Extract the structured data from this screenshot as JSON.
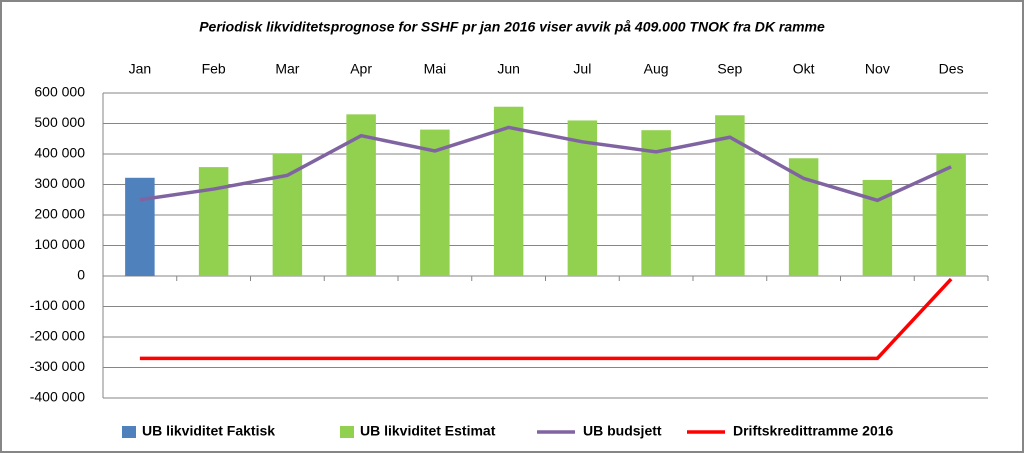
{
  "chart_data": {
    "type": "bar_line",
    "title": "Periodisk likviditetsprognose for SSHF pr jan 2016 viser avvik på 409.000 TNOK fra DK ramme",
    "categories": [
      "Jan",
      "Feb",
      "Mar",
      "Apr",
      "Mai",
      "Jun",
      "Jul",
      "Aug",
      "Sep",
      "Okt",
      "Nov",
      "Des"
    ],
    "series": [
      {
        "name": "UB likviditet Faktisk",
        "type": "bar",
        "color": "#4f81bd",
        "values": [
          322000,
          null,
          null,
          null,
          null,
          null,
          null,
          null,
          null,
          null,
          null,
          null
        ]
      },
      {
        "name": "UB likviditet Estimat",
        "type": "bar",
        "color": "#92d050",
        "values": [
          null,
          357000,
          400000,
          530000,
          480000,
          555000,
          510000,
          478000,
          527000,
          386000,
          315000,
          400000
        ]
      },
      {
        "name": "UB budsjett",
        "type": "line",
        "color": "#8064a2",
        "values": [
          250000,
          285000,
          330000,
          460000,
          410000,
          487000,
          440000,
          407000,
          455000,
          320000,
          248000,
          358000
        ]
      },
      {
        "name": "Driftskredittramme 2016",
        "type": "line",
        "color": "#ff0000",
        "values": [
          -270000,
          -270000,
          -270000,
          -270000,
          -270000,
          -270000,
          -270000,
          -270000,
          -270000,
          -270000,
          -270000,
          -10000
        ]
      }
    ],
    "ylim": [
      -400000,
      600000
    ],
    "yticks": [
      {
        "value": -400000,
        "label": "-400 000"
      },
      {
        "value": -300000,
        "label": "-300 000"
      },
      {
        "value": -200000,
        "label": "-200 000"
      },
      {
        "value": -100000,
        "label": "-100 000"
      },
      0,
      {
        "value": 100000,
        "label": "100 000"
      },
      {
        "value": 200000,
        "label": "200 000"
      },
      {
        "value": 300000,
        "label": "300 000"
      },
      {
        "value": 400000,
        "label": "400 000"
      },
      {
        "value": 500000,
        "label": "500 000"
      },
      {
        "value": 600000,
        "label": "600 000"
      }
    ],
    "grid": true,
    "legend": "bottom"
  }
}
